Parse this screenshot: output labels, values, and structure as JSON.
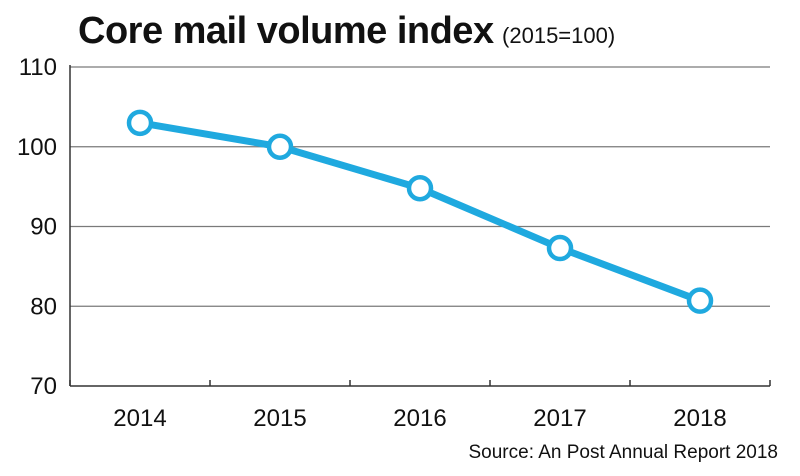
{
  "chart_data": {
    "type": "line",
    "title": "Core mail volume index",
    "subtitle": "(2015=100)",
    "categories": [
      "2014",
      "2015",
      "2016",
      "2017",
      "2018"
    ],
    "series": [
      {
        "name": "Core mail volume index",
        "values": [
          103,
          100,
          94.8,
          87.3,
          80.7
        ]
      }
    ],
    "ylim": [
      70,
      110
    ],
    "yticks": [
      70,
      80,
      90,
      100,
      110
    ],
    "xlabel": "",
    "ylabel": "",
    "grid": true,
    "source": "Source: An Post Annual Report 2018"
  },
  "colors": {
    "line": "#1fa9df",
    "marker_fill": "#ffffff",
    "grid": "#7a7a7a",
    "axis": "#333333",
    "text": "#111111"
  }
}
